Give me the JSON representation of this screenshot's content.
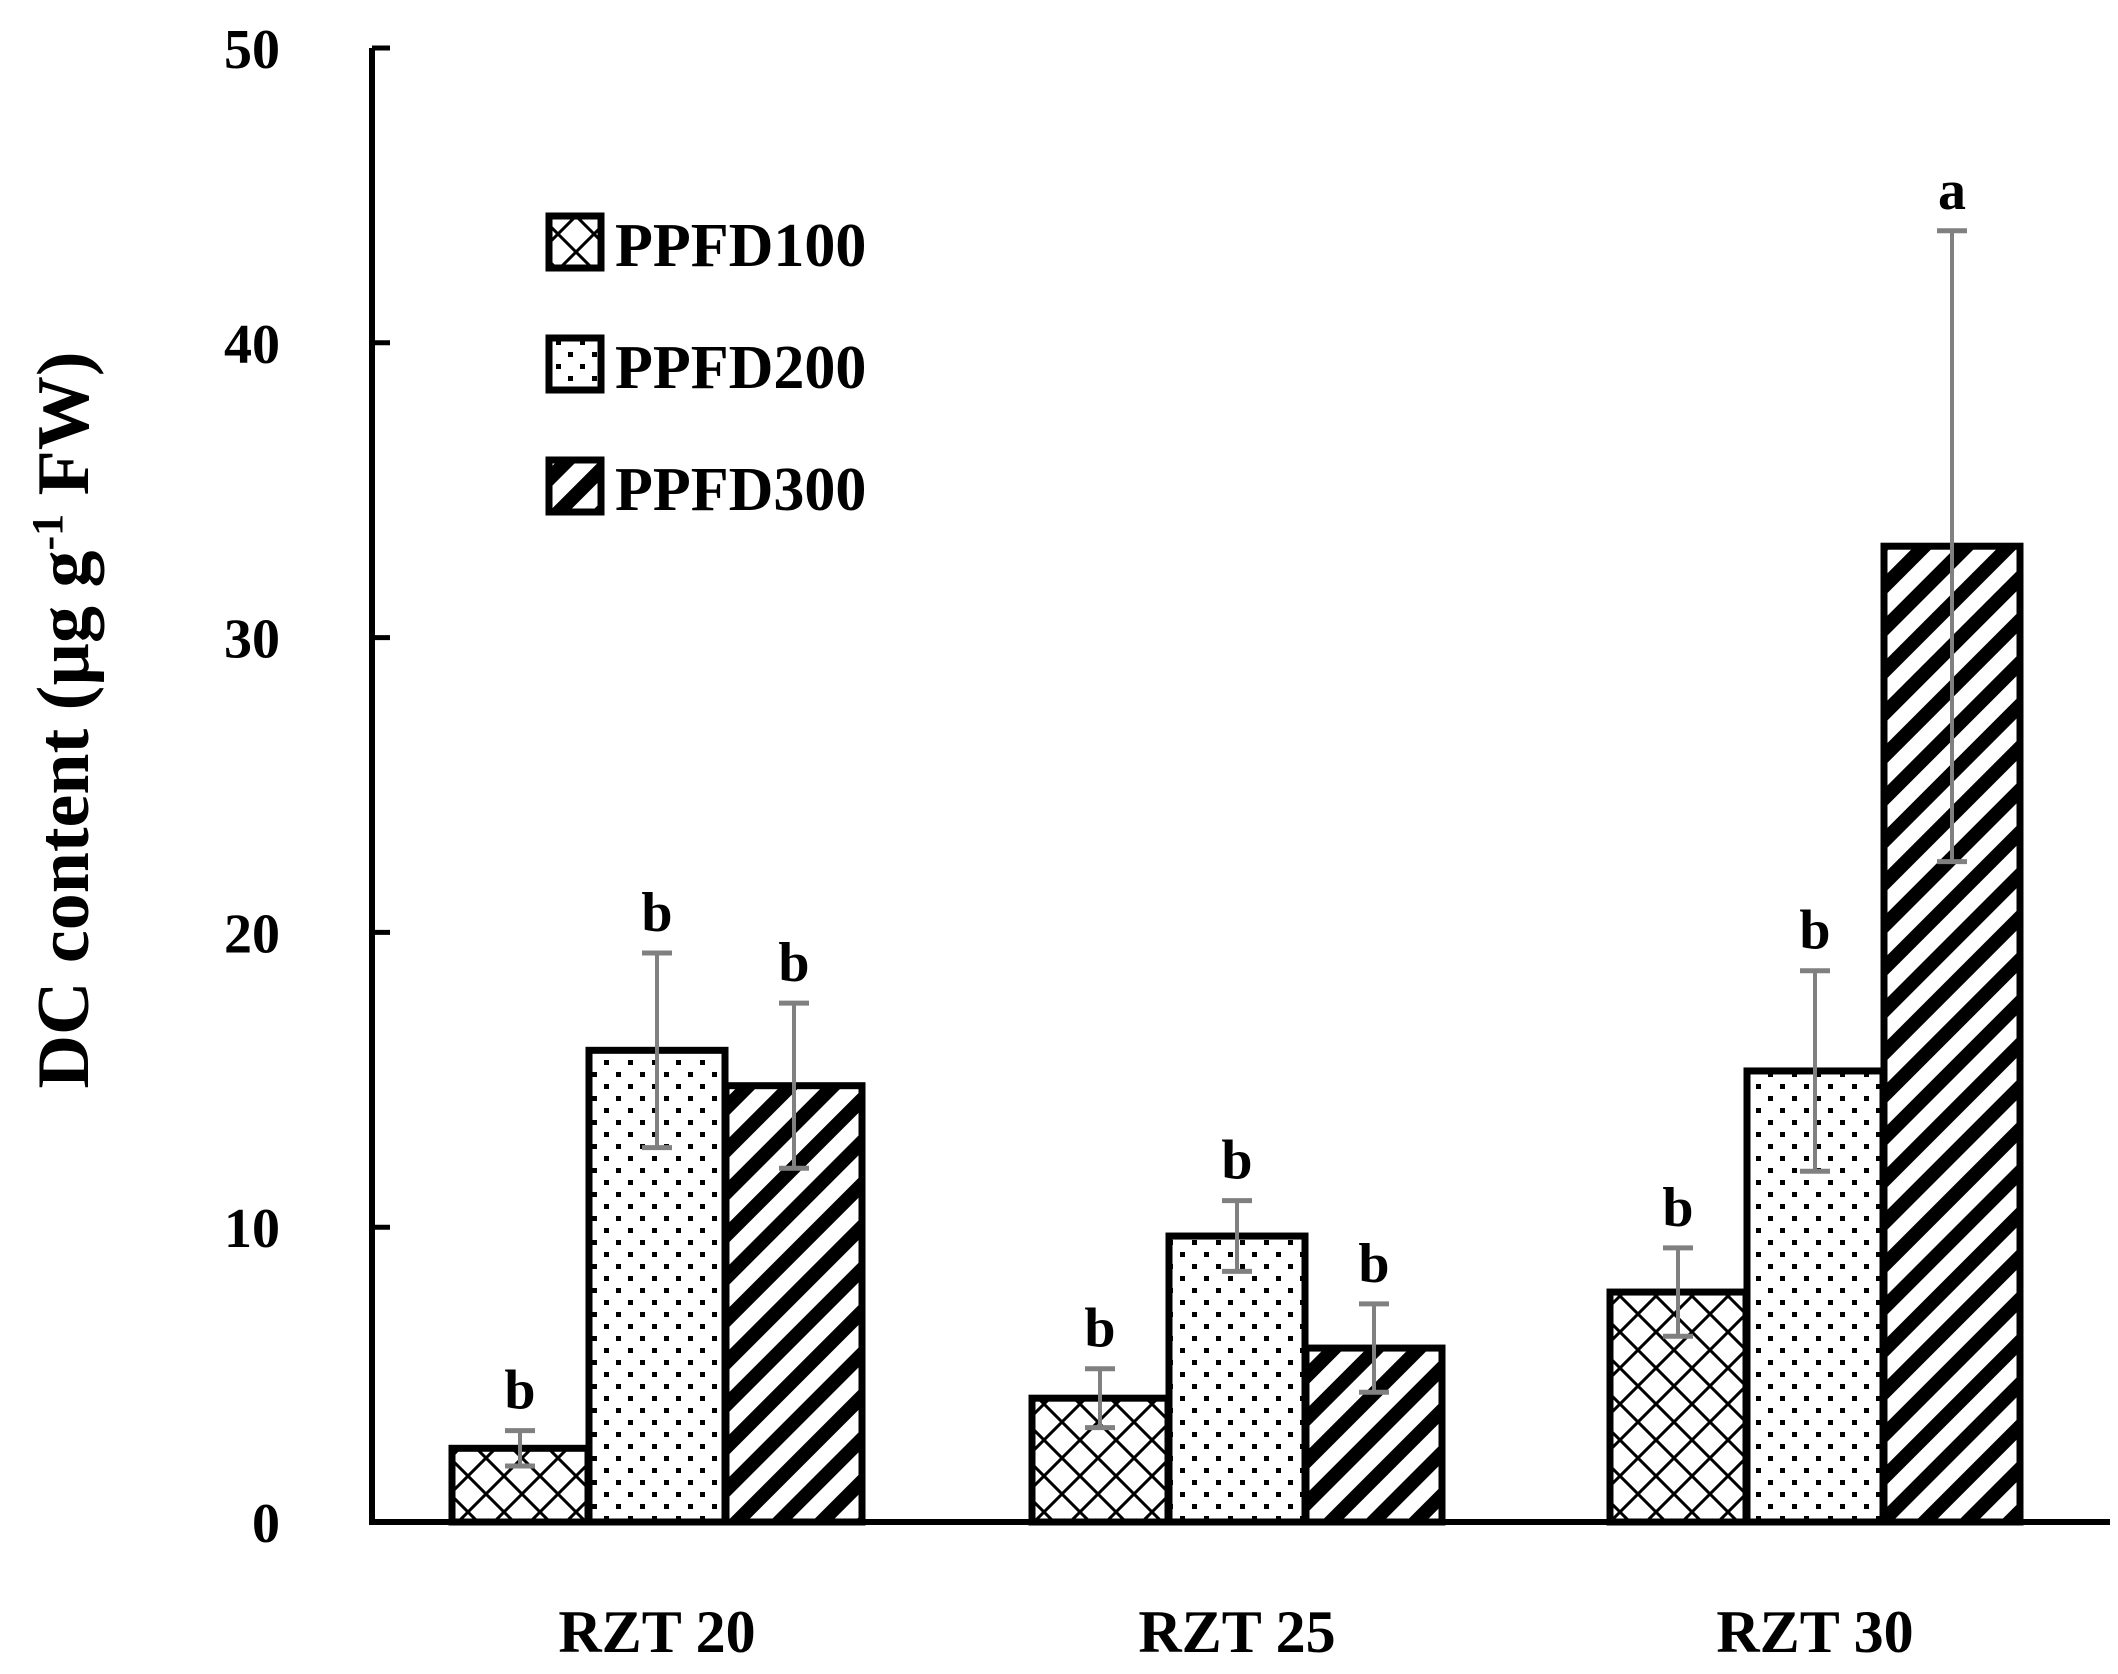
{
  "chart_data": {
    "type": "bar",
    "title": "",
    "xlabel": "",
    "ylabel": {
      "prefix": "DC content (µg g",
      "superscript": "-1",
      "suffix": " FW)"
    },
    "ylim": [
      0,
      50
    ],
    "yticks": [
      "0",
      "10",
      "20",
      "30",
      "40",
      "50"
    ],
    "categories": [
      "RZT 20",
      "RZT 25",
      "RZT 30"
    ],
    "series": [
      {
        "name": "PPFD100",
        "pattern": "crosshatch",
        "values": [
          2.5,
          4.2,
          7.8
        ],
        "errors": [
          0.6,
          1.0,
          1.5
        ],
        "significance": [
          "b",
          "b",
          "b"
        ]
      },
      {
        "name": "PPFD200",
        "pattern": "dots",
        "values": [
          16.0,
          9.7,
          15.3
        ],
        "errors": [
          3.3,
          1.2,
          3.4
        ],
        "significance": [
          "b",
          "b",
          "b"
        ]
      },
      {
        "name": "PPFD300",
        "pattern": "diagonal",
        "values": [
          14.8,
          5.9,
          33.1
        ],
        "errors": [
          2.8,
          1.5,
          10.7
        ],
        "significance": [
          "b",
          "b",
          "a"
        ]
      }
    ],
    "legend_position": "top-left",
    "grid": false,
    "colors": {
      "bar_stroke": "#000000",
      "error_bar": "#808080",
      "axis": "#000000",
      "fill": "#ffffff"
    }
  }
}
